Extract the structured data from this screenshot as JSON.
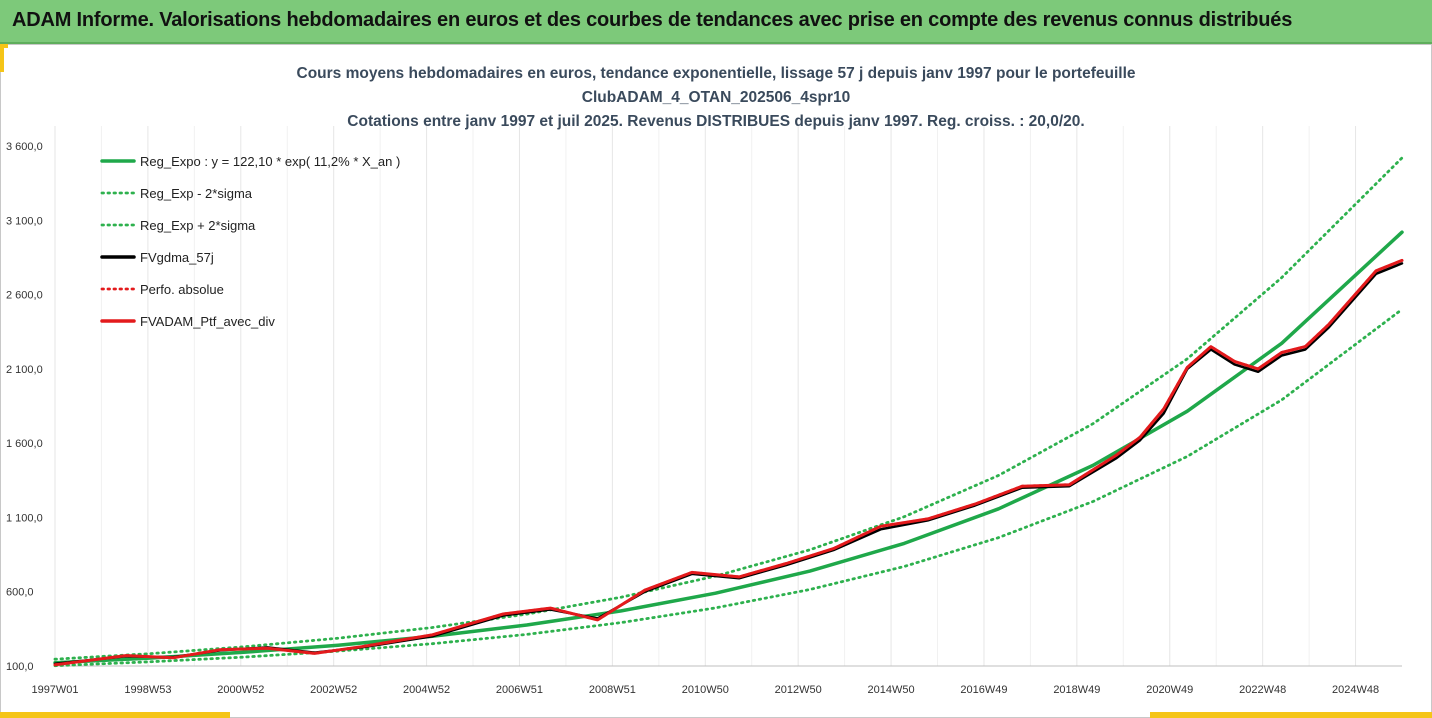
{
  "header": {
    "banner_title": "ADAM Informe. Valorisations hebdomadaires en euros et des courbes de tendances avec prise en compte des revenus connus distribués"
  },
  "chart_data": {
    "type": "line",
    "title": "Cours moyens hebdomadaires  en euros, tendance exponentielle, lissage 57 j depuis janv 1997 pour le portefeuille",
    "subtitle": "ClubADAM_4_OTAN_202506_4spr10",
    "subtitle2": "Cotations  entre janv 1997 et juil 2025. Revenus DISTRIBUES depuis janv 1997. Reg. croiss. : 20,0/20.",
    "xlabel": "",
    "ylabel": "",
    "x_ticks": [
      "1997W01",
      "1998W53",
      "2000W52",
      "2002W52",
      "2004W52",
      "2006W51",
      "2008W51",
      "2010W50",
      "2012W50",
      "2014W50",
      "2016W49",
      "2018W49",
      "2020W49",
      "2022W48",
      "2024W48"
    ],
    "y_ticks": [
      "100,0",
      "600,0",
      "1 100,0",
      "1 600,0",
      "2 100,0",
      "2 600,0",
      "3 100,0",
      "3 600,0"
    ],
    "y_tick_values": [
      100,
      600,
      1100,
      1600,
      2100,
      2600,
      3100,
      3600
    ],
    "xlim": [
      1997.0,
      2025.55
    ],
    "ylim": [
      100,
      3600
    ],
    "grid": "vertical",
    "legend_position": "top-left",
    "series": [
      {
        "name": "Reg_Expo : y = 122,10 * exp( 11,2% *  X_an )",
        "color": "#1fa84a",
        "style": "solid",
        "x": [
          1997,
          1999,
          2001,
          2003,
          2005,
          2007,
          2009,
          2011,
          2013,
          2015,
          2017,
          2019,
          2021,
          2023,
          2025.55
        ],
        "values": [
          122,
          153,
          192,
          240,
          300,
          376,
          471,
          590,
          739,
          925,
          1158,
          1450,
          1815,
          2272,
          3020
        ]
      },
      {
        "name": "Reg_Exp - 2*sigma",
        "color": "#2eb14e",
        "style": "dotted",
        "x": [
          1997,
          1999,
          2001,
          2003,
          2005,
          2007,
          2009,
          2011,
          2013,
          2015,
          2017,
          2019,
          2021,
          2023,
          2025.55
        ],
        "values": [
          102,
          128,
          160,
          200,
          250,
          313,
          392,
          491,
          615,
          770,
          964,
          1207,
          1511,
          1891,
          2500
        ]
      },
      {
        "name": "Reg_Exp + 2*sigma",
        "color": "#2eb14e",
        "style": "dotted",
        "x": [
          1997,
          1999,
          2001,
          2003,
          2005,
          2007,
          2009,
          2011,
          2013,
          2015,
          2017,
          2019,
          2021,
          2023,
          2025.55
        ],
        "values": [
          146,
          183,
          229,
          287,
          359,
          449,
          563,
          705,
          882,
          1105,
          1383,
          1731,
          2168,
          2714,
          3520
        ]
      },
      {
        "name": "FVgdma_57j",
        "color": "#000000",
        "style": "solid",
        "x": [
          1997,
          1998.5,
          1999.5,
          2000.5,
          2001.5,
          2002.5,
          2003.5,
          2005,
          2006.5,
          2007.5,
          2008.5,
          2009.5,
          2010.5,
          2011.5,
          2012.5,
          2013.5,
          2014.5,
          2015.5,
          2016.5,
          2017.5,
          2018.5,
          2019.5,
          2020.0,
          2020.5,
          2021.0,
          2021.5,
          2022.0,
          2022.5,
          2023.0,
          2023.5,
          2024.0,
          2024.5,
          2025.0,
          2025.55
        ],
        "values": [
          115,
          165,
          160,
          205,
          225,
          190,
          225,
          300,
          440,
          480,
          420,
          600,
          720,
          690,
          780,
          880,
          1020,
          1080,
          1180,
          1300,
          1310,
          1500,
          1620,
          1800,
          2100,
          2230,
          2130,
          2080,
          2190,
          2230,
          2380,
          2560,
          2740,
          2810
        ]
      },
      {
        "name": "Perfo. absolue",
        "color": "#e31a1c",
        "style": "dotted",
        "x": [
          1997,
          1998.5,
          1999.5,
          2000.5,
          2001.5,
          2002.5,
          2003.5,
          2005,
          2006.5,
          2007.5,
          2008.5,
          2009.5,
          2010.5,
          2011.5,
          2012.5,
          2013.5,
          2014.5,
          2015.5,
          2016.5,
          2017.5,
          2018.5,
          2019.5,
          2020.0,
          2020.5,
          2021.0,
          2021.5,
          2022.0,
          2022.5,
          2023.0,
          2023.5,
          2024.0,
          2024.5,
          2025.0,
          2025.55
        ],
        "values": [
          108,
          170,
          155,
          210,
          220,
          185,
          230,
          310,
          450,
          490,
          410,
          610,
          730,
          700,
          790,
          890,
          1040,
          1090,
          1190,
          1310,
          1320,
          1520,
          1640,
          1830,
          2110,
          2250,
          2150,
          2100,
          2210,
          2250,
          2400,
          2580,
          2760,
          2830
        ]
      },
      {
        "name": "FVADAM_Ptf_avec_div",
        "color": "#e31a1c",
        "style": "solid",
        "x": [
          1997,
          1998.5,
          1999.5,
          2000.5,
          2001.5,
          2002.5,
          2003.5,
          2005,
          2006.5,
          2007.5,
          2008.5,
          2009.5,
          2010.5,
          2011.5,
          2012.5,
          2013.5,
          2014.5,
          2015.5,
          2016.5,
          2017.5,
          2018.5,
          2019.5,
          2020.0,
          2020.5,
          2021.0,
          2021.5,
          2022.0,
          2022.5,
          2023.0,
          2023.5,
          2024.0,
          2024.5,
          2025.0,
          2025.55
        ],
        "values": [
          108,
          170,
          155,
          210,
          220,
          185,
          230,
          310,
          450,
          490,
          410,
          610,
          730,
          700,
          790,
          890,
          1040,
          1090,
          1190,
          1310,
          1320,
          1520,
          1640,
          1830,
          2110,
          2250,
          2150,
          2100,
          2210,
          2250,
          2400,
          2580,
          2760,
          2830
        ]
      }
    ]
  }
}
